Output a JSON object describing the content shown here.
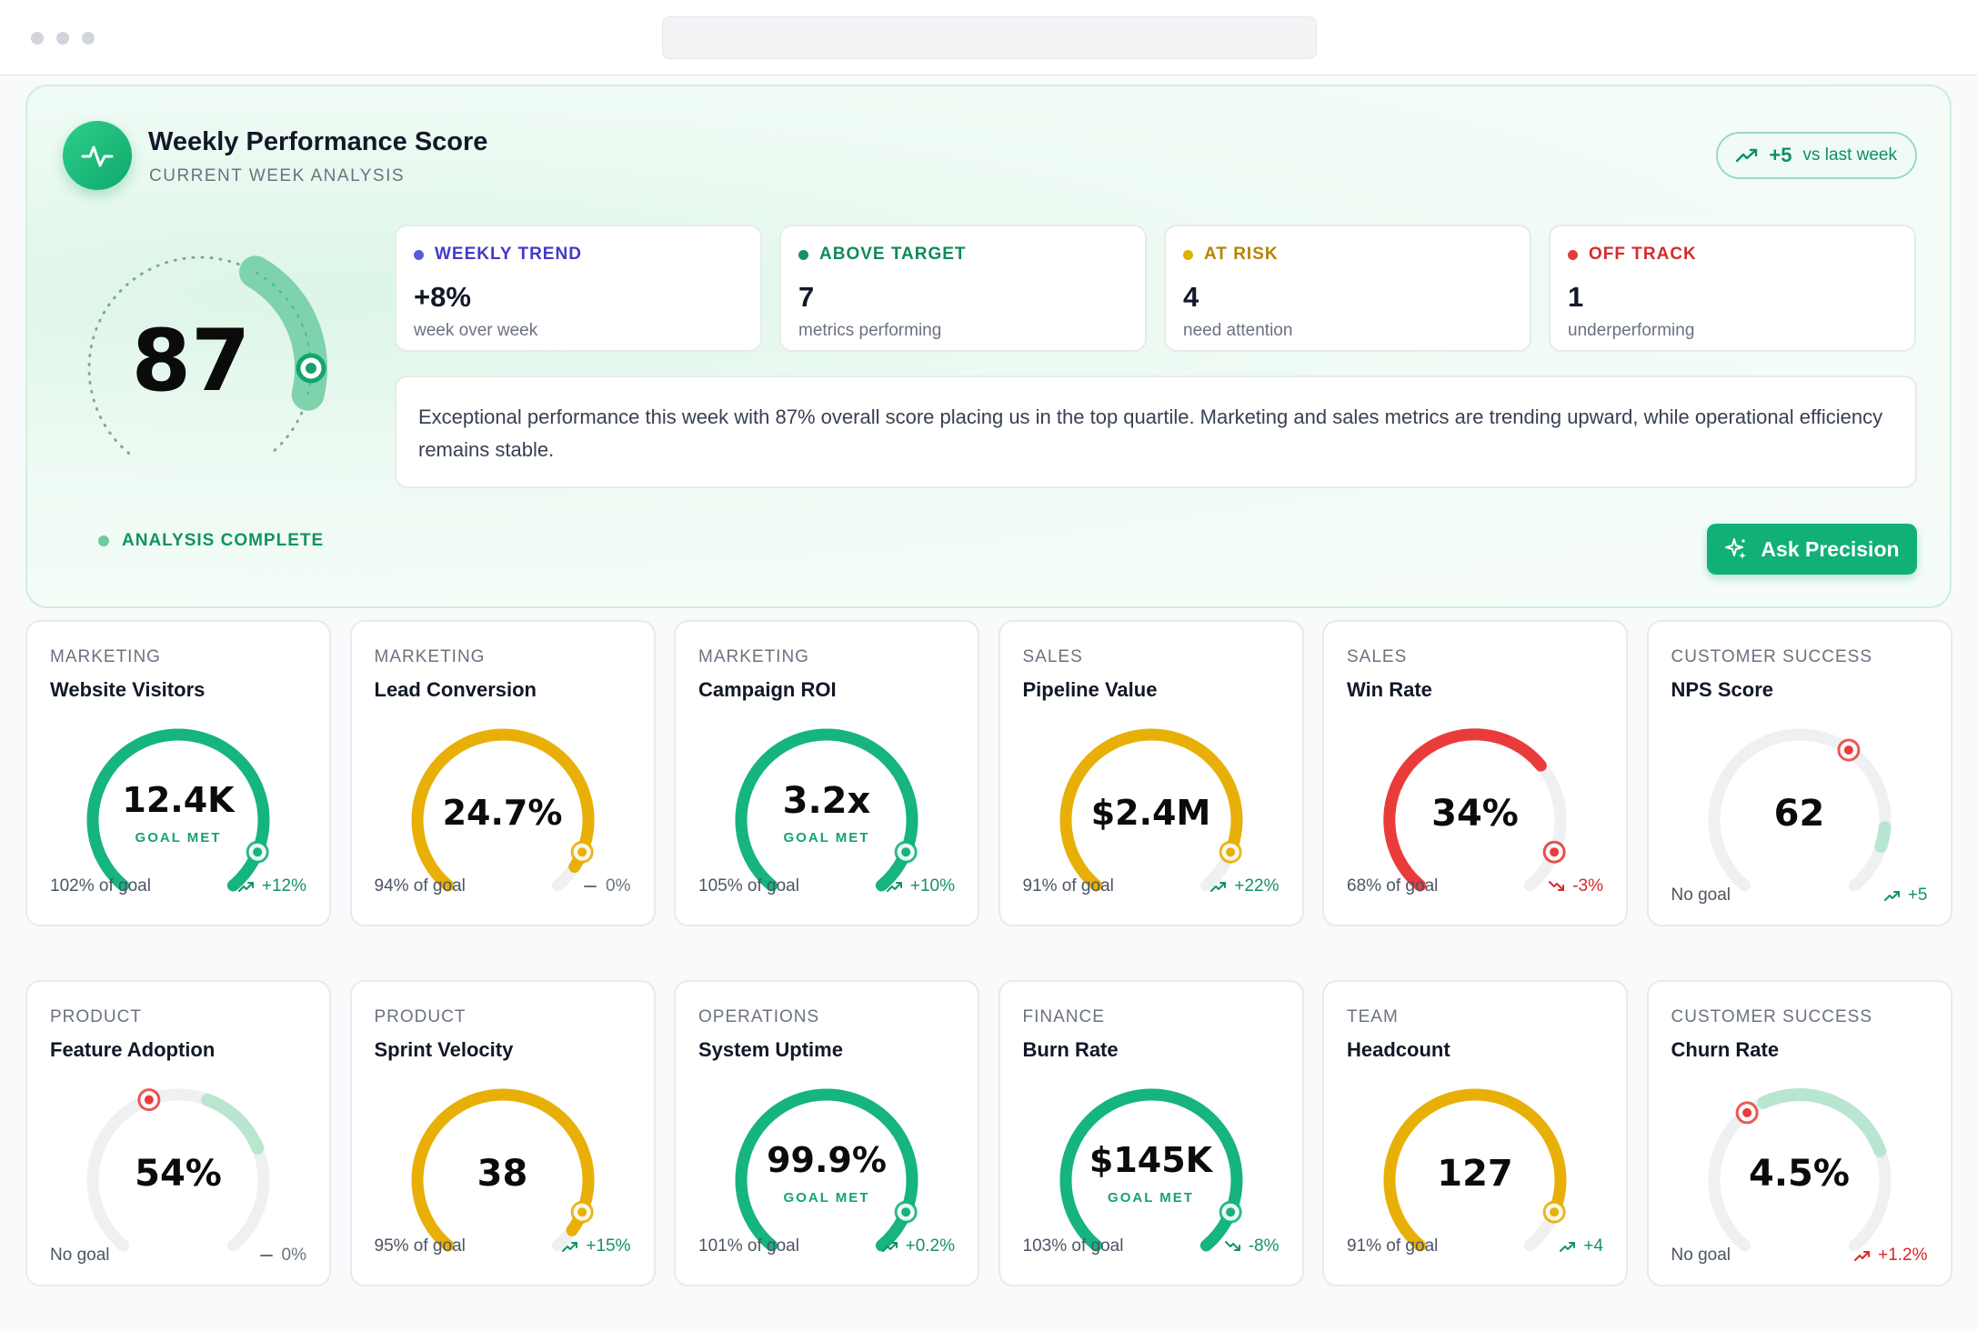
{
  "hero": {
    "title": "Weekly Performance Score",
    "subtitle": "CURRENT WEEK ANALYSIS",
    "delta_value": "+5",
    "delta_label": "vs last week",
    "score": "87",
    "score_fraction": 0.87,
    "status": "ANALYSIS COMPLETE",
    "ask_label": "Ask Precision",
    "summary": "Exceptional performance this week with 87% overall score placing us in the top quartile. Marketing and sales metrics are trending upward, while operational efficiency remains stable."
  },
  "stats": [
    {
      "label": "WEEKLY TREND",
      "value": "+8%",
      "desc": "week over week",
      "color": "#5b5bd6"
    },
    {
      "label": "ABOVE TARGET",
      "value": "7",
      "desc": "metrics performing",
      "color": "#13935f"
    },
    {
      "label": "AT RISK",
      "value": "4",
      "desc": "need attention",
      "color": "#c99700"
    },
    {
      "label": "OFF TRACK",
      "value": "1",
      "desc": "underperforming",
      "color": "#dc2626"
    }
  ],
  "colors": {
    "green": "#16b47e",
    "amber": "#e8b007",
    "red": "#ea3b3b",
    "track": "#eef0f2"
  },
  "metrics": [
    {
      "category": "MARKETING",
      "name": "Website Visitors",
      "value": "12.4K",
      "goal_met": "GOAL MET",
      "goal": "102% of goal",
      "trend": "+12%",
      "dir": "up",
      "status": "green",
      "fill": 1.0
    },
    {
      "category": "MARKETING",
      "name": "Lead Conversion",
      "value": "24.7%",
      "goal_met": "",
      "goal": "94% of goal",
      "trend": "0%",
      "dir": "flat",
      "status": "amber",
      "fill": 0.94
    },
    {
      "category": "MARKETING",
      "name": "Campaign ROI",
      "value": "3.2x",
      "goal_met": "GOAL MET",
      "goal": "105% of goal",
      "trend": "+10%",
      "dir": "up",
      "status": "green",
      "fill": 1.0
    },
    {
      "category": "SALES",
      "name": "Pipeline Value",
      "value": "$2.4M",
      "goal_met": "",
      "goal": "91% of goal",
      "trend": "+22%",
      "dir": "up",
      "status": "amber",
      "fill": 0.91
    },
    {
      "category": "SALES",
      "name": "Win Rate",
      "value": "34%",
      "goal_met": "",
      "goal": "68% of goal",
      "trend": "-3%",
      "dir": "down",
      "status": "red",
      "fill": 0.68
    },
    {
      "category": "CUSTOMER SUCCESS",
      "name": "NPS Score",
      "value": "62",
      "goal_met": "",
      "goal": "No goal",
      "trend": "+5",
      "dir": "up",
      "status": "nogoal",
      "fill": 0
    },
    {
      "category": "PRODUCT",
      "name": "Feature Adoption",
      "value": "54%",
      "goal_met": "",
      "goal": "No goal",
      "trend": "0%",
      "dir": "flat",
      "status": "nogoal",
      "fill": 0
    },
    {
      "category": "PRODUCT",
      "name": "Sprint Velocity",
      "value": "38",
      "goal_met": "",
      "goal": "95% of goal",
      "trend": "+15%",
      "dir": "up",
      "status": "amber",
      "fill": 0.95
    },
    {
      "category": "OPERATIONS",
      "name": "System Uptime",
      "value": "99.9%",
      "goal_met": "GOAL MET",
      "goal": "101% of goal",
      "trend": "+0.2%",
      "dir": "up",
      "status": "green",
      "fill": 1.0
    },
    {
      "category": "FINANCE",
      "name": "Burn Rate",
      "value": "$145K",
      "goal_met": "GOAL MET",
      "goal": "103% of goal",
      "trend": "-8%",
      "dir": "down-good",
      "status": "green",
      "fill": 1.0
    },
    {
      "category": "TEAM",
      "name": "Headcount",
      "value": "127",
      "goal_met": "",
      "goal": "91% of goal",
      "trend": "+4",
      "dir": "up",
      "status": "amber",
      "fill": 0.91
    },
    {
      "category": "CUSTOMER SUCCESS",
      "name": "Churn Rate",
      "value": "4.5%",
      "goal_met": "",
      "goal": "No goal",
      "trend": "+1.2%",
      "dir": "up-bad",
      "status": "nogoal",
      "fill": 0
    }
  ]
}
